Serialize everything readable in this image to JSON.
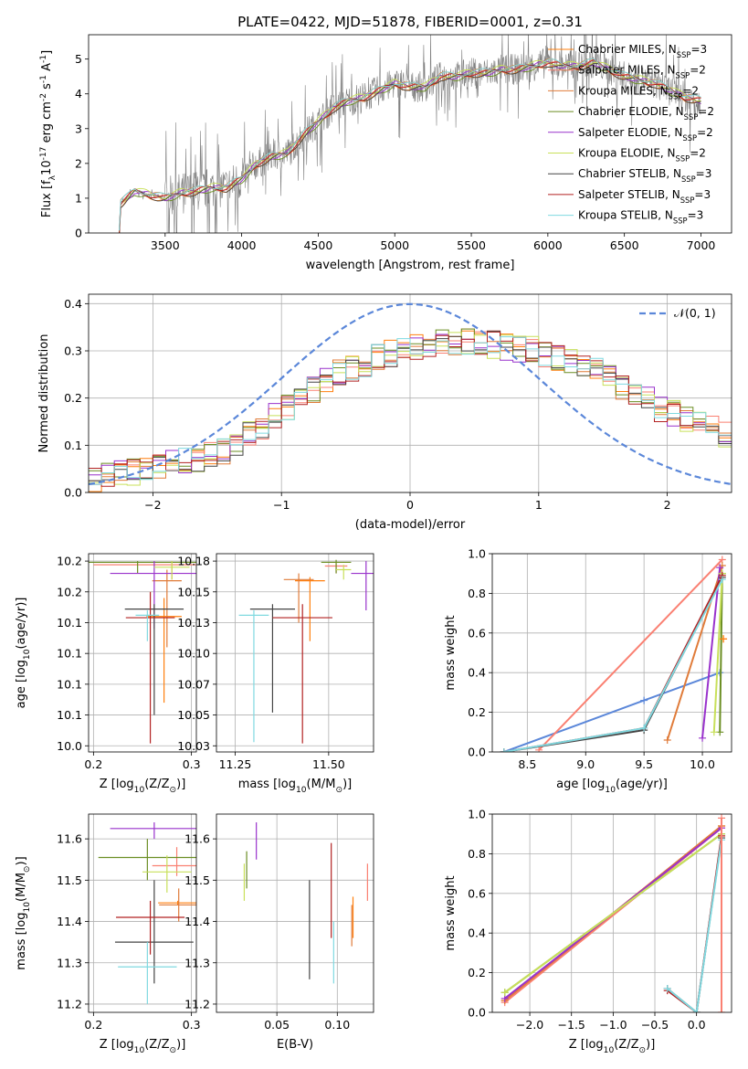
{
  "figure_title": "PLATE=0422, MJD=51878, FIBERID=0001, z=0.31",
  "colors": {
    "cM": "#ff7f0e",
    "sM": "#fa8072",
    "kM": "#e07b39",
    "cE": "#6b8e23",
    "sE": "#9932cc",
    "kE": "#c8e05a",
    "cS": "#444444",
    "sS": "#b22222",
    "kS": "#7fd9e0",
    "normal": "#5b87d9",
    "spectrum": "#808080"
  },
  "chart_data": [
    {
      "id": "spectrum",
      "type": "line",
      "xlabel": "wavelength [Angstrom, rest frame]",
      "ylabel": "Flux [f$_λ$10$^{-17}$ erg cm$^{-2}$ s$^{-1}$ A$^{-1}$]",
      "xlim": [
        3000,
        7200
      ],
      "ylim": [
        0,
        5.7
      ],
      "xticks": [
        3500,
        4000,
        4500,
        5000,
        5500,
        6000,
        6500,
        7000
      ],
      "yticks": [
        0,
        1,
        2,
        3,
        4,
        5
      ],
      "legend_position": "top-right",
      "legend": [
        {
          "base": "Chabrier MILES, N",
          "sub": "SSP",
          "tail": "=3",
          "color_key": "cM"
        },
        {
          "base": "Salpeter MILES, N",
          "sub": "SSP",
          "tail": "=2",
          "color_key": "sM"
        },
        {
          "base": "Kroupa MILES, N",
          "sub": "SSP",
          "tail": "=2",
          "color_key": "kM"
        },
        {
          "base": "Chabrier ELODIE, N",
          "sub": "SSP",
          "tail": "=2",
          "color_key": "cE"
        },
        {
          "base": "Salpeter ELODIE, N",
          "sub": "SSP",
          "tail": "=2",
          "color_key": "sE"
        },
        {
          "base": "Kroupa ELODIE, N",
          "sub": "SSP",
          "tail": "=2",
          "color_key": "kE"
        },
        {
          "base": "Chabrier STELIB, N",
          "sub": "SSP",
          "tail": "=3",
          "color_key": "cS"
        },
        {
          "base": "Salpeter STELIB, N",
          "sub": "SSP",
          "tail": "=3",
          "color_key": "sS"
        },
        {
          "base": "Kroupa STELIB, N",
          "sub": "SSP",
          "tail": "=3",
          "color_key": "kS"
        }
      ],
      "continuum": [
        [
          3200,
          0
        ],
        [
          3210,
          0.85
        ],
        [
          3250,
          1.0
        ],
        [
          3300,
          1.2
        ],
        [
          3400,
          1.1
        ],
        [
          3500,
          1.0
        ],
        [
          3600,
          1.15
        ],
        [
          3700,
          1.2
        ],
        [
          3800,
          1.3
        ],
        [
          3900,
          1.3
        ],
        [
          4000,
          1.55
        ],
        [
          4100,
          2.0
        ],
        [
          4200,
          2.2
        ],
        [
          4300,
          2.3
        ],
        [
          4400,
          2.8
        ],
        [
          4500,
          3.2
        ],
        [
          4600,
          3.6
        ],
        [
          4700,
          3.8
        ],
        [
          4800,
          3.9
        ],
        [
          4900,
          4.1
        ],
        [
          5000,
          4.3
        ],
        [
          5100,
          4.2
        ],
        [
          5200,
          4.2
        ],
        [
          5300,
          4.5
        ],
        [
          5400,
          4.5
        ],
        [
          5500,
          4.6
        ],
        [
          5600,
          4.6
        ],
        [
          5700,
          4.7
        ],
        [
          5800,
          4.7
        ],
        [
          5900,
          4.8
        ],
        [
          6000,
          4.9
        ],
        [
          6100,
          4.8
        ],
        [
          6200,
          4.8
        ],
        [
          6300,
          4.9
        ],
        [
          6400,
          4.7
        ],
        [
          6500,
          4.5
        ],
        [
          6600,
          4.4
        ],
        [
          6700,
          4.3
        ],
        [
          6800,
          4.1
        ],
        [
          6900,
          3.9
        ],
        [
          7000,
          3.8
        ]
      ]
    },
    {
      "id": "residuals",
      "type": "line",
      "xlabel": "(data-model)/error",
      "ylabel": "Normed distribution",
      "xlim": [
        -2.5,
        2.5
      ],
      "ylim": [
        0,
        0.42
      ],
      "xticks": [
        -2,
        -1,
        0,
        1,
        2
      ],
      "yticks": [
        0.0,
        0.1,
        0.2,
        0.3,
        0.4
      ],
      "grid": true,
      "legend_position": "top-right",
      "legend": [
        {
          "label": "𝒩(0, 1)",
          "color_key": "normal",
          "style": "dashed"
        }
      ],
      "histogram_envelope": [
        [
          -2.5,
          0.03
        ],
        [
          -2.0,
          0.05
        ],
        [
          -1.5,
          0.08
        ],
        [
          -1.0,
          0.17
        ],
        [
          -0.5,
          0.26
        ],
        [
          0.0,
          0.31
        ],
        [
          0.5,
          0.32
        ],
        [
          1.0,
          0.3
        ],
        [
          1.5,
          0.25
        ],
        [
          2.0,
          0.17
        ],
        [
          2.5,
          0.12
        ]
      ]
    },
    {
      "id": "age_vs_Z",
      "type": "scatter",
      "xlabel": "Z [log$_{10}$(Z/Z$_⊙$)]",
      "ylabel": "age  [log$_{10}$($age/yr$)]",
      "xlim": [
        0.195,
        0.305
      ],
      "ylim": [
        10.02,
        10.181
      ],
      "xticks": [
        0.2,
        0.3
      ],
      "yticks": [
        10.025,
        10.05,
        10.075,
        10.1,
        10.125,
        10.15,
        10.175
      ],
      "grid": true,
      "points": [
        {
          "k": "cM",
          "x": 0.272,
          "y": 10.13,
          "xe": 0.018,
          "ye": [
            10.06,
            10.145
          ]
        },
        {
          "k": "sM",
          "x": 0.28,
          "y": 10.172,
          "xe": 0.08,
          "ye": [
            10.16,
            10.175
          ]
        },
        {
          "k": "kM",
          "x": 0.275,
          "y": 10.159,
          "xe": 0.015,
          "ye": [
            10.105,
            10.168
          ]
        },
        {
          "k": "cE",
          "x": 0.245,
          "y": 10.174,
          "xe": 0.06,
          "ye": [
            10.165,
            10.175
          ]
        },
        {
          "k": "sE",
          "x": 0.262,
          "y": 10.165,
          "xe": 0.045,
          "ye": [
            10.12,
            10.175
          ]
        },
        {
          "k": "kE",
          "x": 0.28,
          "y": 10.17,
          "xe": 0.018,
          "ye": [
            10.16,
            10.175
          ]
        },
        {
          "k": "cS",
          "x": 0.262,
          "y": 10.136,
          "xe": 0.03,
          "ye": [
            10.05,
            10.14
          ]
        },
        {
          "k": "sS",
          "x": 0.258,
          "y": 10.129,
          "xe": 0.025,
          "ye": [
            10.027,
            10.15
          ]
        },
        {
          "k": "kS",
          "x": 0.255,
          "y": 10.131,
          "xe": 0.012,
          "ye": [
            10.11,
            10.135
          ]
        }
      ]
    },
    {
      "id": "age_vs_mass",
      "type": "scatter",
      "xlabel": "mass [log$_{10}$($M/M_⊙$)]",
      "ylabel": "",
      "xlim": [
        11.2,
        11.62
      ],
      "ylim": [
        10.02,
        10.181
      ],
      "xticks": [
        11.25,
        11.5
      ],
      "yticks": [
        10.025,
        10.05,
        10.075,
        10.1,
        10.125,
        10.15,
        10.175
      ],
      "grid": true,
      "points": [
        {
          "k": "cM",
          "x": 11.45,
          "y": 10.159,
          "xe": 0.04,
          "ye": [
            10.11,
            10.162
          ]
        },
        {
          "k": "sM",
          "x": 11.52,
          "y": 10.171,
          "xe": 0.03,
          "ye": [
            10.165,
            10.173
          ]
        },
        {
          "k": "kM",
          "x": 11.42,
          "y": 10.16,
          "xe": 0.04,
          "ye": [
            10.125,
            10.165
          ]
        },
        {
          "k": "cE",
          "x": 11.52,
          "y": 10.174,
          "xe": 0.04,
          "ye": [
            10.165,
            10.176
          ]
        },
        {
          "k": "sE",
          "x": 11.6,
          "y": 10.165,
          "xe": 0.04,
          "ye": [
            10.135,
            10.175
          ]
        },
        {
          "k": "kE",
          "x": 11.54,
          "y": 10.168,
          "xe": 0.02,
          "ye": [
            10.16,
            10.172
          ]
        },
        {
          "k": "cS",
          "x": 11.35,
          "y": 10.136,
          "xe": 0.06,
          "ye": [
            10.052,
            10.14
          ]
        },
        {
          "k": "sS",
          "x": 11.43,
          "y": 10.129,
          "xe": 0.08,
          "ye": [
            10.027,
            10.14
          ]
        },
        {
          "k": "kS",
          "x": 11.3,
          "y": 10.131,
          "xe": 0.04,
          "ye": [
            10.028,
            10.135
          ]
        }
      ]
    },
    {
      "id": "weight_vs_age",
      "type": "line",
      "xlabel": "age  [log$_{10}$($age/yr$)]",
      "ylabel": "mass weight",
      "xlim": [
        8.2,
        10.25
      ],
      "ylim": [
        0.0,
        1.0
      ],
      "xticks": [
        8.5,
        9.0,
        9.5,
        10.0
      ],
      "yticks": [
        0.0,
        0.2,
        0.4,
        0.6,
        0.8,
        1.0
      ],
      "grid": true,
      "series": [
        {
          "k": "normal",
          "x": [
            8.3,
            9.5,
            10.15
          ],
          "y": [
            0.0,
            0.26,
            0.4
          ]
        },
        {
          "k": "sM",
          "x": 8.6,
          "x2": 10.17,
          "y": 0.01,
          "y2": 0.97
        },
        {
          "k": "kM",
          "x": [
            9.7,
            10.17
          ],
          "y": [
            0.06,
            0.94
          ]
        },
        {
          "k": "sE",
          "x": [
            10.0,
            10.15
          ],
          "y": [
            0.07,
            0.93
          ]
        },
        {
          "k": "cE",
          "x": [
            10.15,
            10.17
          ],
          "y": [
            0.1,
            0.9
          ]
        },
        {
          "k": "kE",
          "x": [
            10.1,
            10.17
          ],
          "y": [
            0.1,
            0.9
          ]
        },
        {
          "k": "cS",
          "x": [
            8.3,
            9.5,
            10.17
          ],
          "y": [
            0.0,
            0.11,
            0.88
          ]
        },
        {
          "k": "sS",
          "x": [
            8.3,
            9.5,
            10.17
          ],
          "y": [
            0.0,
            0.12,
            0.89
          ]
        },
        {
          "k": "kS",
          "x": [
            8.3,
            9.5,
            10.17
          ],
          "y": [
            0.0,
            0.12,
            0.87
          ]
        },
        {
          "k": "cM",
          "x": [
            10.18,
            10.18
          ],
          "y": [
            0.57,
            0.57
          ]
        }
      ]
    },
    {
      "id": "mass_vs_Z",
      "type": "scatter",
      "xlabel": "Z [log$_{10}$(Z/Z$_⊙$)]",
      "ylabel": "mass [log$_{10}$($M/M_⊙$)]",
      "xlim": [
        0.195,
        0.305
      ],
      "ylim": [
        11.18,
        11.66
      ],
      "xticks": [
        0.2,
        0.3
      ],
      "yticks": [
        11.2,
        11.3,
        11.4,
        11.5,
        11.6
      ],
      "grid": true,
      "points": [
        {
          "k": "cM",
          "x": 0.286,
          "y": 11.445,
          "xe": 0.02,
          "ye": [
            11.44,
            11.45
          ]
        },
        {
          "k": "sM",
          "x": 0.285,
          "y": 11.535,
          "xe": 0.025,
          "ye": [
            11.51,
            11.58
          ]
        },
        {
          "k": "kM",
          "x": 0.287,
          "y": 11.44,
          "xe": 0.02,
          "ye": [
            11.4,
            11.48
          ]
        },
        {
          "k": "cE",
          "x": 0.255,
          "y": 11.555,
          "xe": 0.05,
          "ye": [
            11.5,
            11.6
          ]
        },
        {
          "k": "sE",
          "x": 0.262,
          "y": 11.625,
          "xe": 0.045,
          "ye": [
            11.6,
            11.64
          ]
        },
        {
          "k": "kE",
          "x": 0.275,
          "y": 11.52,
          "xe": 0.025,
          "ye": [
            11.47,
            11.56
          ]
        },
        {
          "k": "cS",
          "x": 0.262,
          "y": 11.35,
          "xe": 0.04,
          "ye": [
            11.25,
            11.5
          ]
        },
        {
          "k": "sS",
          "x": 0.258,
          "y": 11.41,
          "xe": 0.035,
          "ye": [
            11.32,
            11.45
          ]
        },
        {
          "k": "kS",
          "x": 0.255,
          "y": 11.29,
          "xe": 0.03,
          "ye": [
            11.2,
            11.35
          ]
        }
      ]
    },
    {
      "id": "mass_vs_EBV",
      "type": "scatter",
      "xlabel": "E(B-V)",
      "ylabel": "",
      "xlim": [
        0.0,
        0.13
      ],
      "ylim": [
        11.18,
        11.66
      ],
      "xticks": [
        0.05,
        0.1
      ],
      "yticks": [
        11.2,
        11.3,
        11.4,
        11.5,
        11.6
      ],
      "grid": true,
      "points": [
        {
          "k": "cM",
          "x": 0.113,
          "ye": [
            11.36,
            11.46
          ]
        },
        {
          "k": "sM",
          "x": 0.125,
          "ye": [
            11.45,
            11.54
          ]
        },
        {
          "k": "kM",
          "x": 0.112,
          "ye": [
            11.34,
            11.44
          ]
        },
        {
          "k": "cE",
          "x": 0.025,
          "ye": [
            11.48,
            11.57
          ]
        },
        {
          "k": "sE",
          "x": 0.033,
          "ye": [
            11.55,
            11.64
          ]
        },
        {
          "k": "kE",
          "x": 0.023,
          "ye": [
            11.45,
            11.54
          ]
        },
        {
          "k": "cS",
          "x": 0.077,
          "ye": [
            11.26,
            11.5
          ]
        },
        {
          "k": "sS",
          "x": 0.095,
          "ye": [
            11.36,
            11.59
          ]
        },
        {
          "k": "kS",
          "x": 0.097,
          "ye": [
            11.25,
            11.4
          ]
        }
      ]
    },
    {
      "id": "weight_vs_Z",
      "type": "line",
      "xlabel": "Z [log$_{10}$(Z/Z$_⊙$)]",
      "ylabel": "mass weight",
      "xlim": [
        -2.45,
        0.42
      ],
      "ylim": [
        0.0,
        1.0
      ],
      "xticks": [
        -2.0,
        -1.5,
        -1.0,
        -0.5,
        0.0
      ],
      "yticks": [
        0.0,
        0.2,
        0.4,
        0.6,
        0.8,
        1.0
      ],
      "grid": true,
      "series": [
        {
          "k": "cM",
          "x": [
            -2.3,
            0.3
          ],
          "y": [
            0.06,
            0.94
          ]
        },
        {
          "k": "sM",
          "x": [
            -2.3,
            0.3
          ],
          "y": [
            0.05,
            0.93
          ]
        },
        {
          "k": "kM",
          "x": [
            -2.3,
            0.3
          ],
          "y": [
            0.06,
            0.94
          ]
        },
        {
          "k": "cE",
          "x": [
            -2.3,
            0.3
          ],
          "y": [
            0.1,
            0.9
          ]
        },
        {
          "k": "sE",
          "x": [
            -2.3,
            0.3
          ],
          "y": [
            0.07,
            0.93
          ]
        },
        {
          "k": "kE",
          "x": [
            -2.3,
            0.3
          ],
          "y": [
            0.1,
            0.9
          ]
        },
        {
          "k": "cS",
          "x": [
            -0.35,
            0.0,
            0.3
          ],
          "y": [
            0.12,
            0.0,
            0.88
          ]
        },
        {
          "k": "sS",
          "x": [
            -0.35,
            0.0,
            0.3
          ],
          "y": [
            0.11,
            0.0,
            0.89
          ]
        },
        {
          "k": "kS",
          "x": [
            -0.35,
            0.0,
            0.3
          ],
          "y": [
            0.12,
            0.0,
            0.87
          ]
        },
        {
          "k": "sM",
          "x": [
            0.3,
            0.3
          ],
          "y": [
            0.0,
            0.98
          ]
        }
      ]
    }
  ]
}
